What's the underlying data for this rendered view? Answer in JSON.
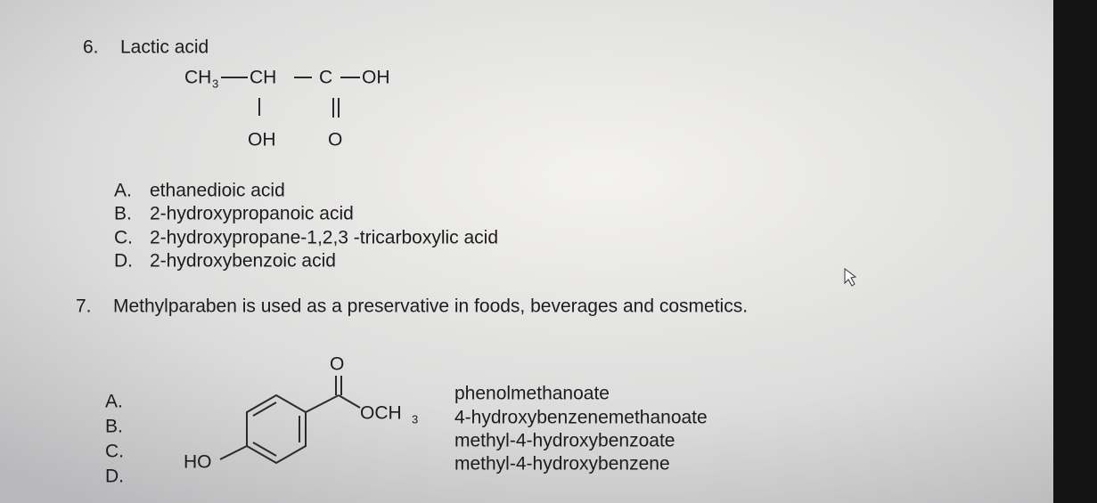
{
  "questions": [
    {
      "number": "6.",
      "text": "Lactic acid",
      "structure": {
        "atoms": [
          "CH",
          "3",
          "CH",
          "C",
          "OH",
          "OH",
          "O"
        ]
      },
      "options": [
        {
          "letter": "A.",
          "text": "ethanedioic acid"
        },
        {
          "letter": "B.",
          "text": "2-hydroxypropanoic acid"
        },
        {
          "letter": "C.",
          "text": "2-hydroxypropane-1,2,3 -tricarboxylic acid"
        },
        {
          "letter": "D.",
          "text": "2-hydroxybenzoic acid"
        }
      ]
    },
    {
      "number": "7.",
      "text": "Methylparaben is used as a preservative in foods, beverages and cosmetics.",
      "structure": {
        "atoms": [
          "O",
          "OCH",
          "3",
          "HO"
        ]
      },
      "options": [
        {
          "letter": "A.",
          "text": "phenolmethanoate"
        },
        {
          "letter": "B.",
          "text": "4-hydroxybenzenemethanoate"
        },
        {
          "letter": "C.",
          "text": "methyl-4-hydroxybenzoate"
        },
        {
          "letter": "D.",
          "text": "methyl-4-hydroxybenzene"
        }
      ]
    }
  ]
}
